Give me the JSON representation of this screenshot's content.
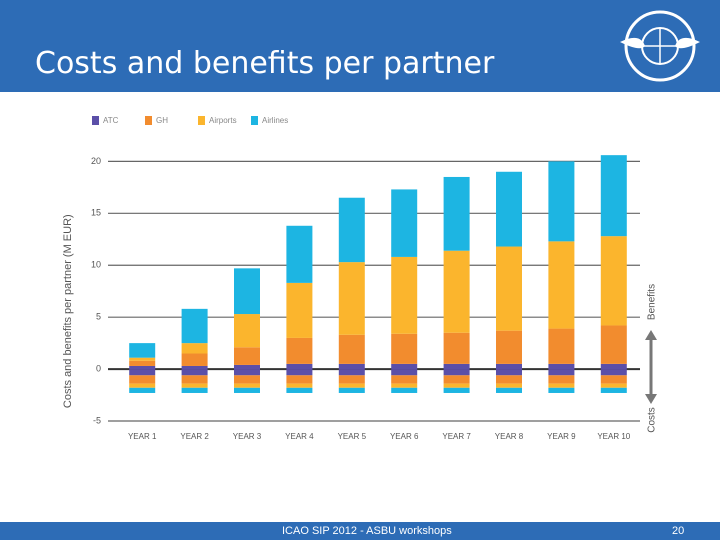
{
  "slide": {
    "title": "Costs and benefits per partner",
    "footer": "ICAO SIP 2012 - ASBU workshops",
    "page_number": "20"
  },
  "chart_data": {
    "type": "stacked_bar",
    "y_label": "Costs and benefits per partner (M EUR)",
    "annotations": {
      "benefits": "Benefits",
      "costs": "Costs"
    },
    "categories": [
      "YEAR 1",
      "YEAR 2",
      "YEAR 3",
      "YEAR 4",
      "YEAR 5",
      "YEAR 6",
      "YEAR 7",
      "YEAR 8",
      "YEAR 9",
      "YEAR 10"
    ],
    "series": [
      {
        "name": "ATC",
        "color": "#5b4fa8",
        "values": [
          0.3,
          0.3,
          0.4,
          0.5,
          0.5,
          0.5,
          0.5,
          0.5,
          0.5,
          0.5
        ],
        "costs": [
          -0.6,
          -0.6,
          -0.6,
          -0.6,
          -0.6,
          -0.6,
          -0.6,
          -0.6,
          -0.6,
          -0.6
        ]
      },
      {
        "name": "GH",
        "color": "#f28c2e",
        "values": [
          0.5,
          1.2,
          1.7,
          2.5,
          2.8,
          2.9,
          3.0,
          3.2,
          3.4,
          3.7
        ],
        "costs": [
          -0.8,
          -0.8,
          -0.8,
          -0.8,
          -0.8,
          -0.8,
          -0.8,
          -0.8,
          -0.8,
          -0.8
        ]
      },
      {
        "name": "Airports",
        "color": "#fbb52d",
        "values": [
          0.3,
          1.0,
          3.2,
          5.3,
          7.0,
          7.4,
          7.9,
          8.1,
          8.4,
          8.6
        ],
        "costs": [
          -0.4,
          -0.4,
          -0.4,
          -0.4,
          -0.4,
          -0.4,
          -0.4,
          -0.4,
          -0.4,
          -0.4
        ]
      },
      {
        "name": "Airlines",
        "color": "#1db5e2",
        "values": [
          1.4,
          3.3,
          4.4,
          5.5,
          6.2,
          6.5,
          7.1,
          7.2,
          7.7,
          7.8
        ],
        "costs": [
          -0.5,
          -0.5,
          -0.5,
          -0.5,
          -0.5,
          -0.5,
          -0.5,
          -0.5,
          -0.5,
          -0.5
        ]
      }
    ],
    "ylim": [
      -6,
      21
    ],
    "yticks": [
      -5,
      0,
      5,
      10,
      15,
      20
    ],
    "grid": true
  }
}
